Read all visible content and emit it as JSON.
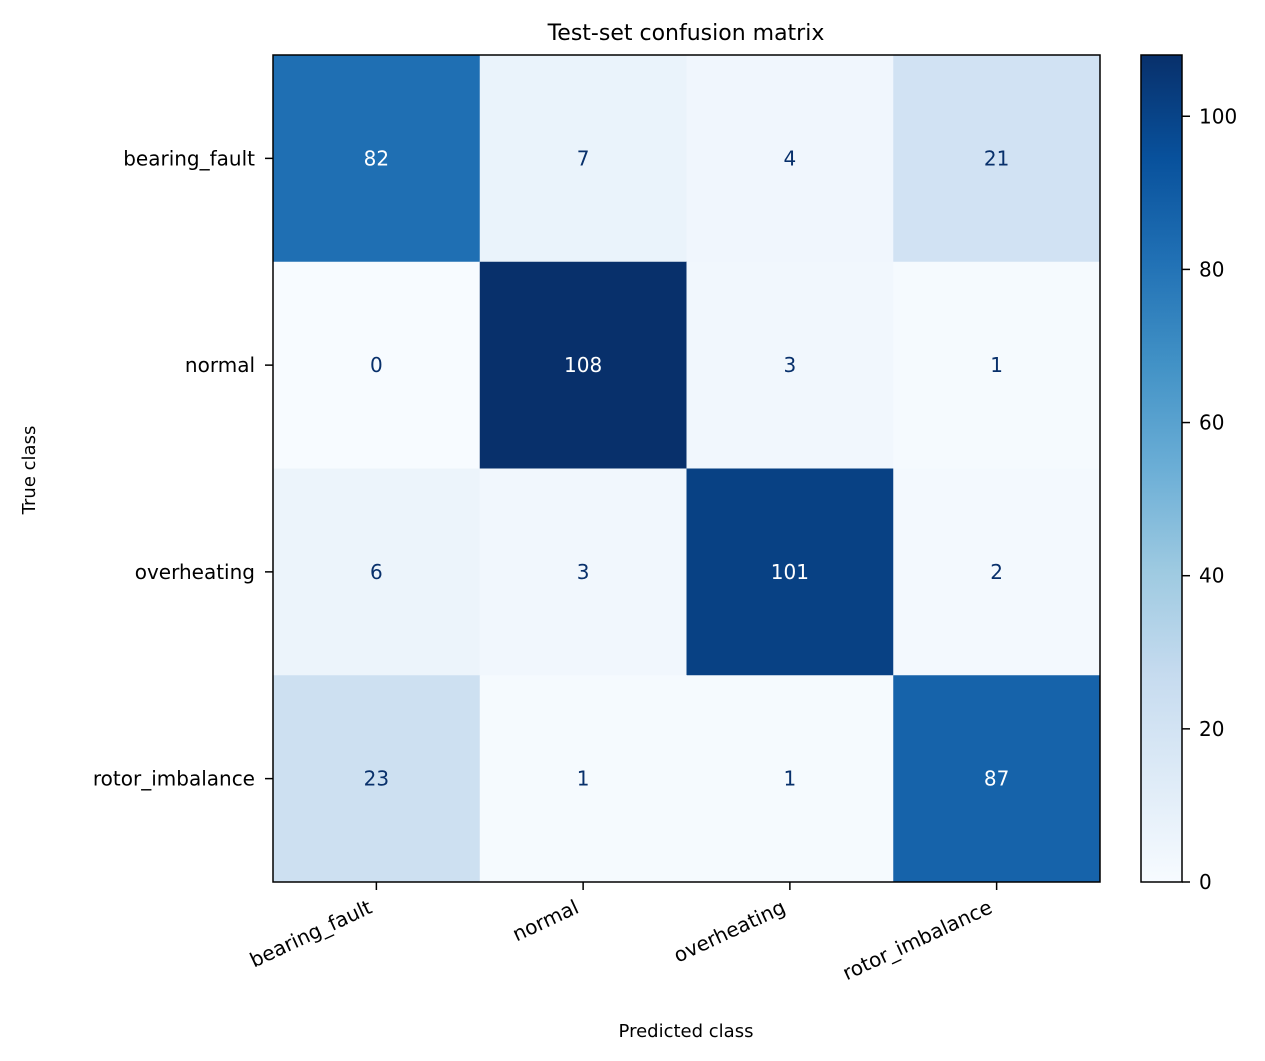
{
  "chart_data": {
    "type": "heatmap",
    "title": "Test-set confusion matrix",
    "xlabel": "Predicted class",
    "ylabel": "True class",
    "x_categories": [
      "bearing_fault",
      "normal",
      "overheating",
      "rotor_imbalance"
    ],
    "y_categories": [
      "bearing_fault",
      "normal",
      "overheating",
      "rotor_imbalance"
    ],
    "matrix": [
      [
        82,
        7,
        4,
        21
      ],
      [
        0,
        108,
        3,
        1
      ],
      [
        6,
        3,
        101,
        2
      ],
      [
        23,
        1,
        1,
        87
      ]
    ],
    "value_range": [
      0,
      108
    ],
    "colormap": "Blues",
    "colorbar_ticks": [
      0,
      20,
      40,
      60,
      80,
      100
    ],
    "grid": false,
    "text_colors": {
      "light": "#ffffff",
      "dark": "#08306b"
    }
  }
}
